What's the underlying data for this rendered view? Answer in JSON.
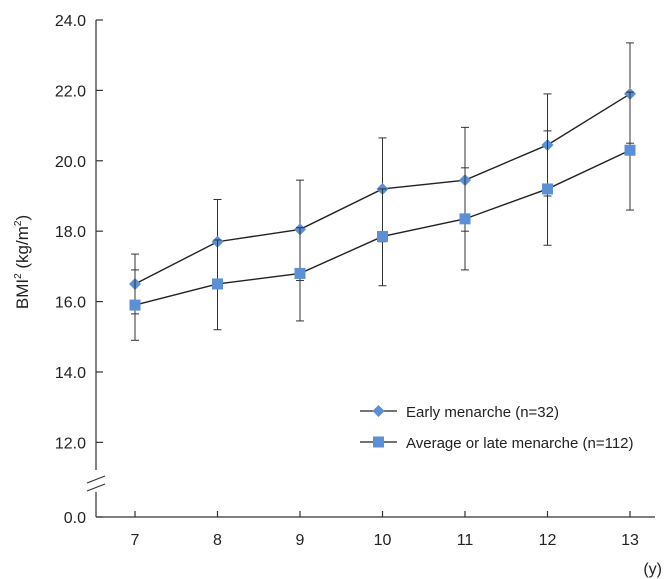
{
  "chart_data": {
    "type": "line",
    "ylabel": "BMI",
    "ylabel_sup": "2",
    "ylabel_unit_pre": " (kg/m",
    "ylabel_unit_sup": "2",
    "ylabel_unit_post": ")",
    "xunit": "(y)",
    "categories": [
      "7",
      "8",
      "9",
      "10",
      "11",
      "12",
      "13"
    ],
    "y_ticks": [
      "24.0",
      "22.0",
      "20.0",
      "18.0",
      "16.0",
      "14.0",
      "12.0"
    ],
    "y_zero_tick": "0.0",
    "y_tick_values": [
      24,
      22,
      20,
      18,
      16,
      14,
      12
    ],
    "ylim": [
      11.3,
      24
    ],
    "axis_break": true,
    "legend_position": "lower-right",
    "colors": {
      "marker": "#5b8fd6",
      "line": "#222222",
      "axis": "#333333"
    },
    "series": [
      {
        "name": "Early menarche (n=32)",
        "marker": "diamond",
        "values": [
          16.5,
          17.7,
          18.05,
          19.2,
          19.45,
          20.45,
          21.9
        ],
        "err_low": [
          15.65,
          16.5,
          16.6,
          17.7,
          18.0,
          19.0,
          20.5
        ],
        "err_high": [
          17.35,
          18.9,
          19.45,
          20.65,
          20.95,
          21.9,
          23.35
        ]
      },
      {
        "name": "Average or late menarche (n=112)",
        "marker": "square",
        "values": [
          15.9,
          16.5,
          16.8,
          17.85,
          18.35,
          19.2,
          20.3
        ],
        "err_low": [
          14.9,
          15.2,
          15.45,
          16.45,
          16.9,
          17.6,
          18.6
        ],
        "err_high": [
          16.9,
          17.75,
          18.1,
          19.2,
          19.8,
          20.85,
          21.95
        ]
      }
    ]
  }
}
